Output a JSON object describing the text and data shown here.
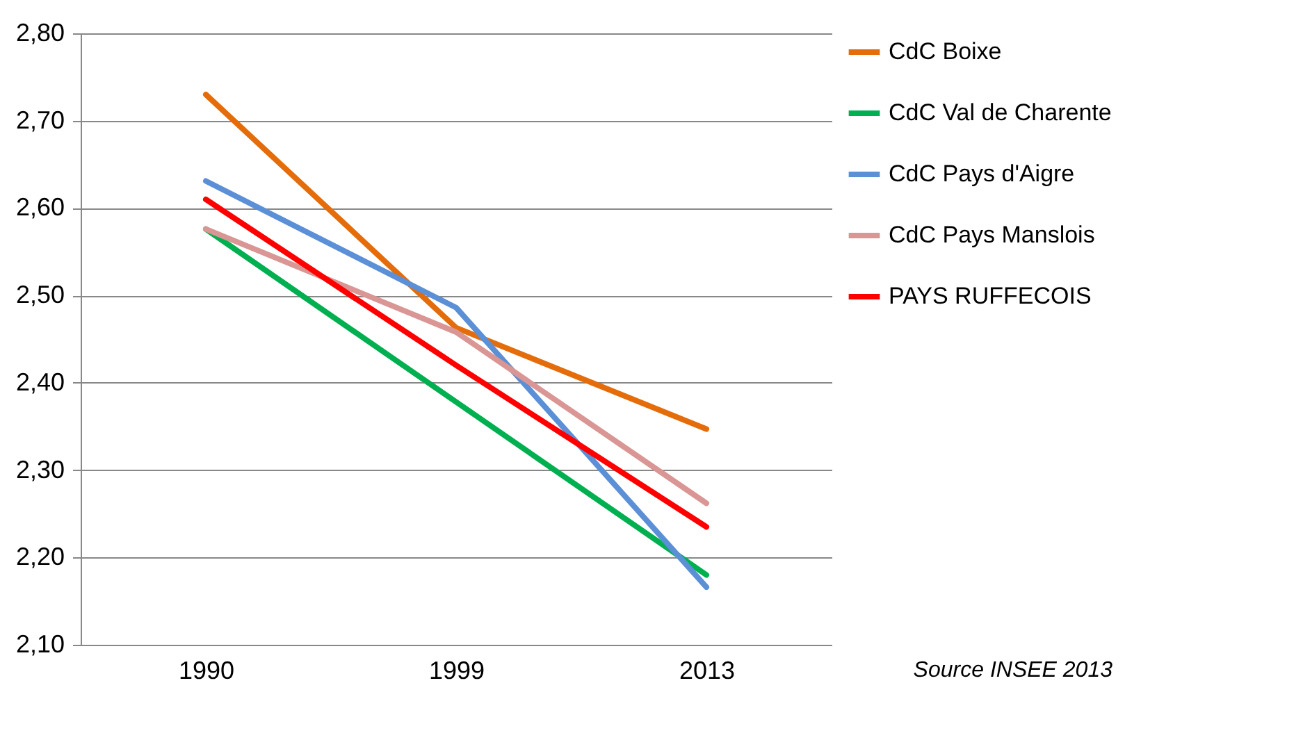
{
  "chart_data": {
    "type": "line",
    "categories": [
      "1990",
      "1999",
      "2013"
    ],
    "series": [
      {
        "name": "CdC Boixe",
        "color": "#e46c0a",
        "values": [
          2.73,
          2.463,
          2.347
        ]
      },
      {
        "name": "CdC Val de Charente",
        "color": "#00b050",
        "values": [
          2.576,
          2.378,
          2.18
        ]
      },
      {
        "name": "CdC Pays d'Aigre",
        "color": "#5b8fd6",
        "values": [
          2.631,
          2.486,
          2.166
        ]
      },
      {
        "name": "CdC Pays Manslois",
        "color": "#d99694",
        "values": [
          2.576,
          2.458,
          2.262
        ]
      },
      {
        "name": "PAYS RUFFECOIS",
        "color": "#ff0000",
        "values": [
          2.61,
          2.42,
          2.235
        ]
      }
    ],
    "ylim": [
      2.1,
      2.8
    ],
    "yticks": [
      {
        "value": 2.1,
        "label": "2,10"
      },
      {
        "value": 2.2,
        "label": "2,20"
      },
      {
        "value": 2.3,
        "label": "2,30"
      },
      {
        "value": 2.4,
        "label": "2,40"
      },
      {
        "value": 2.5,
        "label": "2,50"
      },
      {
        "value": 2.6,
        "label": "2,60"
      },
      {
        "value": 2.7,
        "label": "2,70"
      },
      {
        "value": 2.8,
        "label": "2,80"
      }
    ],
    "grid": "y",
    "legend": "right",
    "marker": "none",
    "line_style": "solid",
    "annotations": [
      "Source INSEE 2013"
    ]
  }
}
